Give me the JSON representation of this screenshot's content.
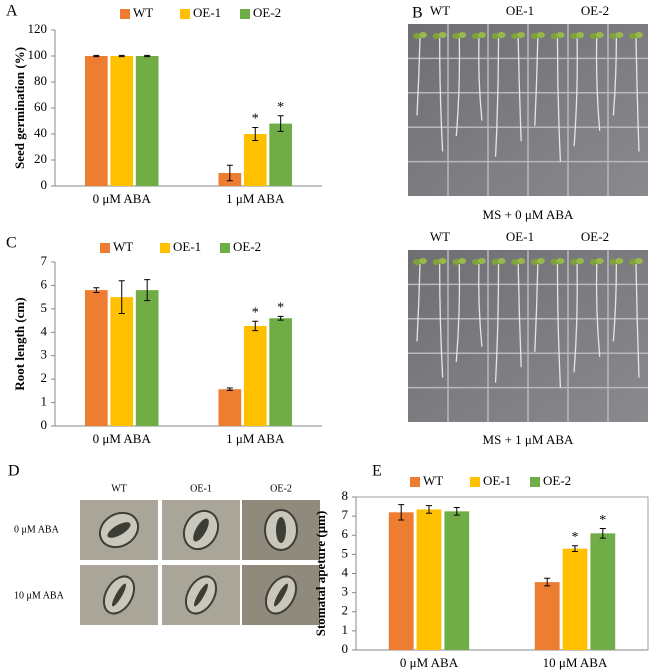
{
  "chart_data": [
    {
      "type": "bar",
      "panel_label": "A",
      "ylabel": "Seed  germination (%)",
      "categories": [
        "0 μM ABA",
        "1 μM ABA"
      ],
      "series": [
        {
          "name": "WT",
          "color": "#ed7d31",
          "values": [
            100,
            10
          ],
          "errors": [
            0.5,
            6
          ],
          "annotations": [
            null,
            null
          ]
        },
        {
          "name": "OE-1",
          "color": "#ffc000",
          "values": [
            100,
            40
          ],
          "errors": [
            0.5,
            5
          ],
          "annotations": [
            null,
            "*"
          ]
        },
        {
          "name": "OE-2",
          "color": "#70ad47",
          "values": [
            100,
            48
          ],
          "errors": [
            0.5,
            6
          ],
          "annotations": [
            null,
            "*"
          ]
        }
      ],
      "ylim": [
        0,
        120
      ],
      "yticks": [
        0,
        20,
        40,
        60,
        80,
        100,
        120
      ],
      "frame": false
    },
    {
      "type": "bar",
      "panel_label": "C",
      "ylabel": "Root length (cm)",
      "categories": [
        "0 μM ABA",
        "1 μM ABA"
      ],
      "series": [
        {
          "name": "WT",
          "color": "#ed7d31",
          "values": [
            5.8,
            1.57
          ],
          "errors": [
            0.1,
            0.05
          ],
          "annotations": [
            null,
            null
          ]
        },
        {
          "name": "OE-1",
          "color": "#ffc000",
          "values": [
            5.5,
            4.27
          ],
          "errors": [
            0.7,
            0.2
          ],
          "annotations": [
            null,
            "*"
          ]
        },
        {
          "name": "OE-2",
          "color": "#70ad47",
          "values": [
            5.8,
            4.6
          ],
          "errors": [
            0.45,
            0.08
          ],
          "annotations": [
            null,
            "*"
          ]
        }
      ],
      "ylim": [
        0,
        7
      ],
      "yticks": [
        0,
        1,
        2,
        3,
        4,
        5,
        6,
        7
      ],
      "frame": false
    },
    {
      "type": "bar",
      "panel_label": "E",
      "ylabel": "Stomatal apeture (μm)",
      "categories": [
        "0 μM ABA",
        "10 μM ABA"
      ],
      "series": [
        {
          "name": "WT",
          "color": "#ed7d31",
          "values": [
            7.2,
            3.55
          ],
          "errors": [
            0.4,
            0.2
          ],
          "annotations": [
            null,
            null
          ]
        },
        {
          "name": "OE-1",
          "color": "#ffc000",
          "values": [
            7.35,
            5.3
          ],
          "errors": [
            0.2,
            0.15
          ],
          "annotations": [
            null,
            "*"
          ]
        },
        {
          "name": "OE-2",
          "color": "#70ad47",
          "values": [
            7.25,
            6.1
          ],
          "errors": [
            0.2,
            0.25
          ],
          "annotations": [
            null,
            "*"
          ]
        }
      ],
      "ylim": [
        0,
        8
      ],
      "yticks": [
        0,
        1,
        2,
        3,
        4,
        5,
        6,
        7,
        8
      ],
      "frame": true
    }
  ],
  "panel_b": {
    "label": "B",
    "top": {
      "columns": [
        "WT",
        "OE-1",
        "OE-2"
      ],
      "caption": "MS + 0 μM ABA"
    },
    "bottom": {
      "columns": [
        "WT",
        "OE-1",
        "OE-2"
      ],
      "caption": "MS + 1 μM ABA"
    }
  },
  "panel_d": {
    "label": "D",
    "columns": [
      "WT",
      "OE-1",
      "OE-2"
    ],
    "rows": [
      "0 μM ABA",
      "10 μM ABA"
    ]
  }
}
